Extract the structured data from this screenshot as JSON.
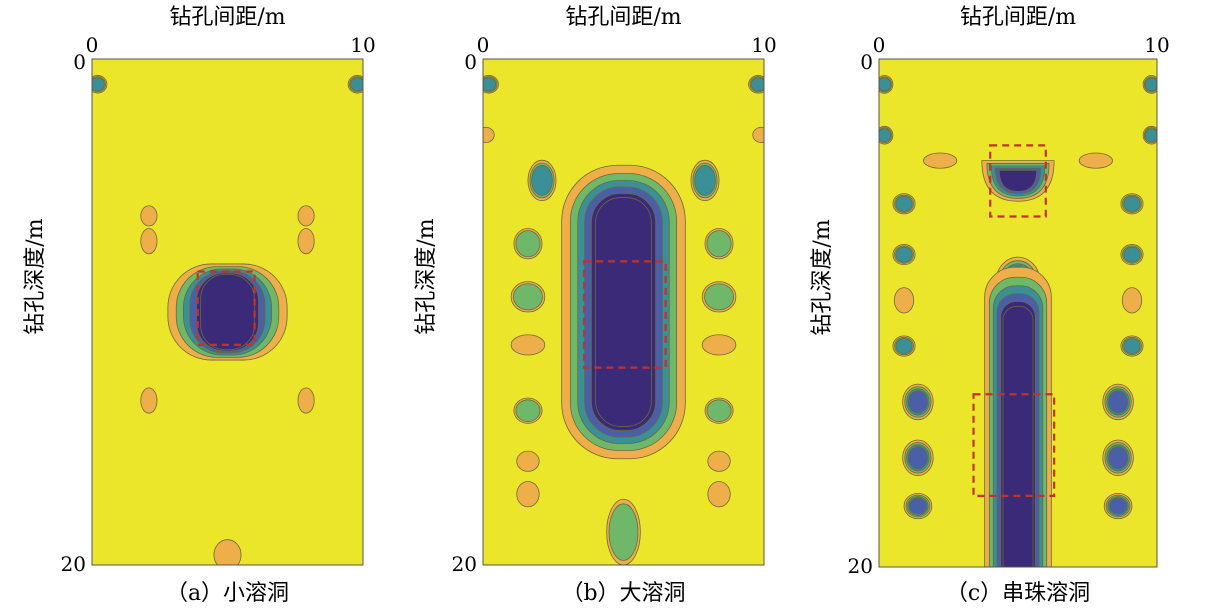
{
  "figure": {
    "background_fill": "#ebe62a",
    "contour_colors": {
      "outer": "#eeae4a",
      "mid_green": "#6fb86a",
      "teal": "#3b8f96",
      "blue": "#4a5fa8",
      "core": "#3a2a78"
    },
    "box_color": "#c0322e"
  },
  "chart_data": [
    {
      "type": "heatmap",
      "panel_id": "a",
      "xlabel": "钻孔间距/m",
      "ylabel": "钻孔深度/m",
      "x_ticks": [
        "0",
        "10"
      ],
      "y_ticks": [
        "0",
        "20"
      ],
      "xlim": [
        0,
        10
      ],
      "ylim": [
        0,
        20
      ],
      "caption": "（a）小溶洞",
      "anomalies": [
        {
          "kind": "cavity",
          "x": 5,
          "y": 10,
          "rx": 2.2,
          "ry": 1.9,
          "levels": 6
        },
        {
          "kind": "spot",
          "x": 0.2,
          "y": 1.0,
          "rx": 0.35,
          "ry": 0.35,
          "levels": 3
        },
        {
          "kind": "spot",
          "x": 9.8,
          "y": 1.0,
          "rx": 0.35,
          "ry": 0.35,
          "levels": 3
        },
        {
          "kind": "spot",
          "x": 2.1,
          "y": 6.2,
          "rx": 0.3,
          "ry": 0.4,
          "levels": 1
        },
        {
          "kind": "spot",
          "x": 2.1,
          "y": 7.2,
          "rx": 0.3,
          "ry": 0.5,
          "levels": 1
        },
        {
          "kind": "spot",
          "x": 7.9,
          "y": 6.2,
          "rx": 0.3,
          "ry": 0.4,
          "levels": 1
        },
        {
          "kind": "spot",
          "x": 7.9,
          "y": 7.2,
          "rx": 0.3,
          "ry": 0.5,
          "levels": 1
        },
        {
          "kind": "spot",
          "x": 2.1,
          "y": 13.5,
          "rx": 0.3,
          "ry": 0.5,
          "levels": 1
        },
        {
          "kind": "spot",
          "x": 7.9,
          "y": 13.5,
          "rx": 0.3,
          "ry": 0.5,
          "levels": 1
        },
        {
          "kind": "spot",
          "x": 5.0,
          "y": 19.6,
          "rx": 0.5,
          "ry": 0.6,
          "levels": 1
        }
      ],
      "boxes": [
        {
          "x0": 3.9,
          "x1": 6.0,
          "y0": 8.4,
          "y1": 11.3
        }
      ]
    },
    {
      "type": "heatmap",
      "panel_id": "b",
      "xlabel": "钻孔间距/m",
      "ylabel": "钻孔深度/m",
      "x_ticks": [
        "0",
        "10"
      ],
      "y_ticks": [
        "0",
        "20"
      ],
      "xlim": [
        0,
        10
      ],
      "ylim": [
        0,
        20
      ],
      "caption": "（b）大溶洞",
      "anomalies": [
        {
          "kind": "cavity",
          "x": 5,
          "y": 10.0,
          "rx": 2.2,
          "ry": 5.8,
          "levels": 6
        },
        {
          "kind": "spot",
          "x": 0.2,
          "y": 1.0,
          "rx": 0.35,
          "ry": 0.35,
          "levels": 3
        },
        {
          "kind": "spot",
          "x": 9.8,
          "y": 1.0,
          "rx": 0.35,
          "ry": 0.35,
          "levels": 3
        },
        {
          "kind": "spot",
          "x": 0.1,
          "y": 3.0,
          "rx": 0.3,
          "ry": 0.3,
          "levels": 1
        },
        {
          "kind": "spot",
          "x": 9.9,
          "y": 3.0,
          "rx": 0.3,
          "ry": 0.3,
          "levels": 1
        },
        {
          "kind": "spot",
          "x": 2.1,
          "y": 4.8,
          "rx": 0.5,
          "ry": 0.8,
          "levels": 3
        },
        {
          "kind": "spot",
          "x": 7.9,
          "y": 4.8,
          "rx": 0.5,
          "ry": 0.8,
          "levels": 3
        },
        {
          "kind": "spot",
          "x": 1.6,
          "y": 7.3,
          "rx": 0.5,
          "ry": 0.6,
          "levels": 2
        },
        {
          "kind": "spot",
          "x": 8.4,
          "y": 7.3,
          "rx": 0.5,
          "ry": 0.6,
          "levels": 2
        },
        {
          "kind": "spot",
          "x": 1.6,
          "y": 9.4,
          "rx": 0.6,
          "ry": 0.6,
          "levels": 2
        },
        {
          "kind": "spot",
          "x": 8.4,
          "y": 9.4,
          "rx": 0.6,
          "ry": 0.6,
          "levels": 2
        },
        {
          "kind": "spot",
          "x": 1.6,
          "y": 11.3,
          "rx": 0.6,
          "ry": 0.4,
          "levels": 1
        },
        {
          "kind": "spot",
          "x": 8.4,
          "y": 11.3,
          "rx": 0.6,
          "ry": 0.4,
          "levels": 1
        },
        {
          "kind": "spot",
          "x": 1.6,
          "y": 13.9,
          "rx": 0.5,
          "ry": 0.5,
          "levels": 2
        },
        {
          "kind": "spot",
          "x": 8.4,
          "y": 13.9,
          "rx": 0.5,
          "ry": 0.5,
          "levels": 2
        },
        {
          "kind": "spot",
          "x": 1.6,
          "y": 15.9,
          "rx": 0.4,
          "ry": 0.4,
          "levels": 1
        },
        {
          "kind": "spot",
          "x": 8.4,
          "y": 15.9,
          "rx": 0.4,
          "ry": 0.4,
          "levels": 1
        },
        {
          "kind": "spot",
          "x": 1.6,
          "y": 17.2,
          "rx": 0.4,
          "ry": 0.5,
          "levels": 1
        },
        {
          "kind": "spot",
          "x": 8.4,
          "y": 17.2,
          "rx": 0.4,
          "ry": 0.5,
          "levels": 1
        },
        {
          "kind": "spot",
          "x": 5.0,
          "y": 18.7,
          "rx": 0.6,
          "ry": 1.3,
          "levels": 2
        }
      ],
      "boxes": [
        {
          "x0": 3.6,
          "x1": 6.5,
          "y0": 8.0,
          "y1": 12.2
        }
      ]
    },
    {
      "type": "heatmap",
      "panel_id": "c",
      "xlabel": "钻孔间距/m",
      "ylabel": "钻孔深度/m",
      "x_ticks": [
        "0",
        "10"
      ],
      "y_ticks": [
        "0",
        "20"
      ],
      "xlim": [
        0,
        10
      ],
      "ylim": [
        0,
        20
      ],
      "caption": "（c）串珠溶洞",
      "anomalies": [
        {
          "kind": "spot",
          "x": 0.2,
          "y": 1.0,
          "rx": 0.3,
          "ry": 0.35,
          "levels": 3
        },
        {
          "kind": "spot",
          "x": 9.8,
          "y": 1.0,
          "rx": 0.3,
          "ry": 0.35,
          "levels": 3
        },
        {
          "kind": "spot",
          "x": 0.2,
          "y": 3.0,
          "rx": 0.3,
          "ry": 0.35,
          "levels": 3
        },
        {
          "kind": "spot",
          "x": 9.8,
          "y": 3.0,
          "rx": 0.3,
          "ry": 0.35,
          "levels": 3
        },
        {
          "kind": "spot",
          "x": 2.2,
          "y": 4.0,
          "rx": 0.6,
          "ry": 0.3,
          "levels": 1
        },
        {
          "kind": "spot",
          "x": 7.8,
          "y": 4.0,
          "rx": 0.6,
          "ry": 0.3,
          "levels": 1
        },
        {
          "kind": "bowl",
          "x": 5.0,
          "y": 4.8,
          "rx": 1.3,
          "ry": 0.8,
          "levels": 5
        },
        {
          "kind": "spot",
          "x": 0.9,
          "y": 5.7,
          "rx": 0.4,
          "ry": 0.4,
          "levels": 3
        },
        {
          "kind": "spot",
          "x": 9.1,
          "y": 5.7,
          "rx": 0.4,
          "ry": 0.4,
          "levels": 3
        },
        {
          "kind": "spot",
          "x": 0.9,
          "y": 7.7,
          "rx": 0.4,
          "ry": 0.4,
          "levels": 3
        },
        {
          "kind": "spot",
          "x": 9.1,
          "y": 7.7,
          "rx": 0.4,
          "ry": 0.4,
          "levels": 3
        },
        {
          "kind": "spot",
          "x": 5.0,
          "y": 8.8,
          "rx": 0.8,
          "ry": 1.0,
          "levels": 5
        },
        {
          "kind": "spot",
          "x": 0.9,
          "y": 9.5,
          "rx": 0.35,
          "ry": 0.5,
          "levels": 1
        },
        {
          "kind": "spot",
          "x": 9.1,
          "y": 9.5,
          "rx": 0.35,
          "ry": 0.5,
          "levels": 1
        },
        {
          "kind": "spot",
          "x": 0.9,
          "y": 11.3,
          "rx": 0.4,
          "ry": 0.4,
          "levels": 3
        },
        {
          "kind": "spot",
          "x": 9.1,
          "y": 11.3,
          "rx": 0.4,
          "ry": 0.4,
          "levels": 3
        },
        {
          "kind": "column",
          "x": 5.0,
          "y": 15.2,
          "rx": 1.2,
          "ry": 7.0,
          "levels": 6
        },
        {
          "kind": "spot",
          "x": 1.4,
          "y": 13.5,
          "rx": 0.55,
          "ry": 0.7,
          "levels": 4
        },
        {
          "kind": "spot",
          "x": 8.6,
          "y": 13.5,
          "rx": 0.55,
          "ry": 0.7,
          "levels": 4
        },
        {
          "kind": "spot",
          "x": 1.4,
          "y": 15.7,
          "rx": 0.55,
          "ry": 0.7,
          "levels": 4
        },
        {
          "kind": "spot",
          "x": 8.6,
          "y": 15.7,
          "rx": 0.55,
          "ry": 0.7,
          "levels": 4
        },
        {
          "kind": "spot",
          "x": 1.4,
          "y": 17.6,
          "rx": 0.5,
          "ry": 0.5,
          "levels": 4
        },
        {
          "kind": "spot",
          "x": 8.6,
          "y": 17.6,
          "rx": 0.5,
          "ry": 0.5,
          "levels": 4
        }
      ],
      "boxes": [
        {
          "x0": 4.0,
          "x1": 6.0,
          "y0": 3.4,
          "y1": 6.2
        },
        {
          "x0": 3.4,
          "x1": 6.3,
          "y0": 13.2,
          "y1": 17.2
        }
      ]
    }
  ]
}
